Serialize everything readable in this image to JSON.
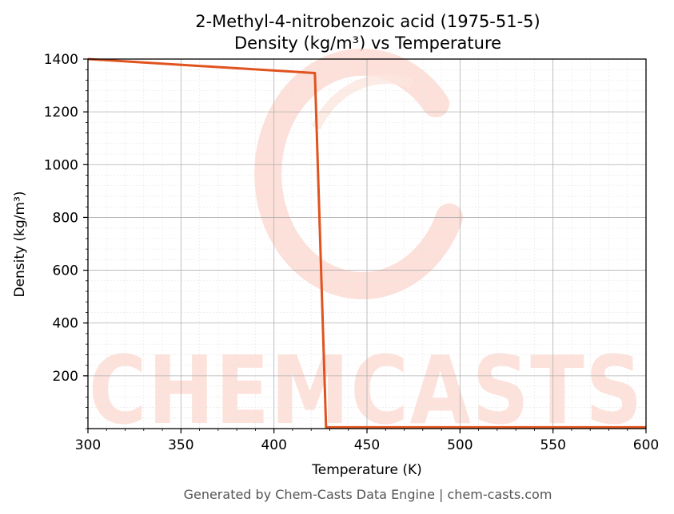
{
  "chart_data": {
    "type": "line",
    "title": "2-Methyl-4-nitrobenzoic acid (1975-51-5)",
    "subtitle": "Density (kg/m³) vs Temperature",
    "xlabel": "Temperature (K)",
    "ylabel": "Density (kg/m³)",
    "xlim": [
      300,
      600
    ],
    "ylim": [
      0,
      1400
    ],
    "x_ticks": [
      300,
      350,
      400,
      450,
      500,
      550,
      600
    ],
    "y_ticks": [
      200,
      400,
      600,
      800,
      1000,
      1200,
      1400
    ],
    "grid": true,
    "series": [
      {
        "color": "#e0531f",
        "x": [
          300,
          422,
          428,
          600
        ],
        "y": [
          1400,
          1347,
          5,
          5
        ]
      }
    ]
  },
  "watermark": {
    "text": "CHEMCASTS",
    "color": "#fbd3c9"
  },
  "footer": "Generated by Chem-Casts Data Engine | chem-casts.com"
}
